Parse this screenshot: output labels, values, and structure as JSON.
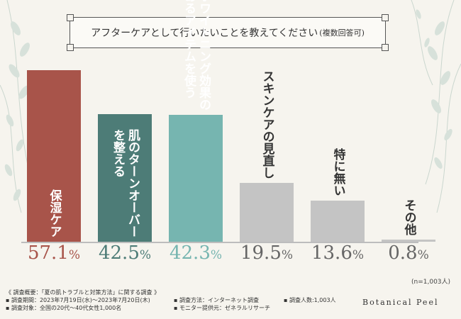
{
  "title": {
    "main": "アフターケアとして行いたいことを教えてください",
    "sub": "(複数回答可)"
  },
  "chart_data": {
    "type": "bar",
    "title": "アフターケアとして行いたいことを教えてください(複数回答可)",
    "unit": "%",
    "categories": [
      "保湿ケア",
      "肌のターンオーバーを整える",
      "ホワイトニング効果のあるアイテムを使う",
      "スキンケアの見直し",
      "特に無い",
      "その他"
    ],
    "values": [
      57.1,
      42.5,
      42.3,
      19.5,
      13.6,
      0.8
    ],
    "value_labels": [
      {
        "big": "57.1",
        "small": "%"
      },
      {
        "big": "42.5",
        "small": "%"
      },
      {
        "big": "42.3",
        "small": "%"
      },
      {
        "big": "19.5",
        "small": "%"
      },
      {
        "big": "13.6",
        "small": "%"
      },
      {
        "big": "0.8",
        "small": "%"
      }
    ],
    "bar_labels": [
      "保湿ケア",
      "肌のターンオーバー\nを整える",
      "ホワイトニング効果の\nあるアイテムを使う",
      "スキンケアの見直し",
      "特に無い",
      "その他"
    ],
    "colors": {
      "bars": [
        "#a8544a",
        "#4d7c77",
        "#76b5b0",
        "#c4c4c4",
        "#c4c4c4",
        "#c4c4c4"
      ],
      "label_text": [
        "#ffffff",
        "#ffffff",
        "#ffffff",
        "#333333",
        "#333333",
        "#333333"
      ],
      "pct_text": [
        "#a8544a",
        "#4d7c77",
        "#76b5b0",
        "#666666",
        "#666666",
        "#666666"
      ],
      "baseline": "#bdbdbd"
    },
    "ylim": [
      0,
      60
    ],
    "sample_note": "(n=1,003人)"
  },
  "footer": {
    "col1": [
      "《 調査概要：「夏の肌トラブルと対策方法」に関する調査 》",
      "▪ 調査期間：2023年7月19日(水)〜2023年7月20日(木)",
      "▪ 調査対象：全国の20代〜40代女性1,000名"
    ],
    "col2": [
      "▪ 調査方法：インターネット調査",
      "▪ モニター提供元：ゼネラルリサーチ"
    ],
    "col3": [
      "▪ 調査人数:1,003人"
    ]
  },
  "brand": "Botanical Peel"
}
